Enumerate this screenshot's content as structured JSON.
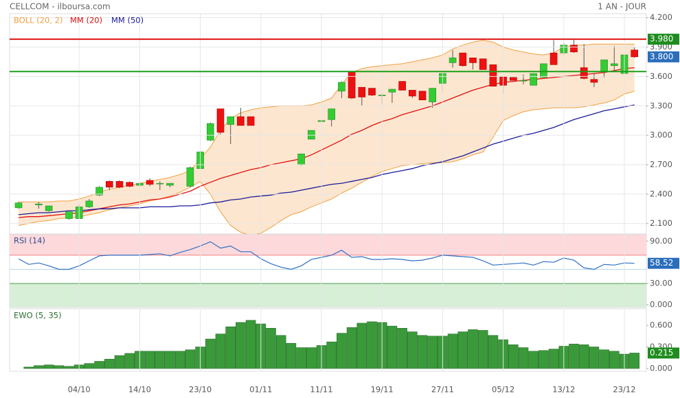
{
  "chart_data": [
    {
      "type": "candlestick",
      "title": "CELLCOM - ilboursa.com",
      "subtitle": "1 AN - JOUR",
      "categories": [
        null,
        null,
        null,
        null,
        null,
        null,
        "04/10",
        null,
        null,
        null,
        null,
        null,
        "14/10",
        null,
        null,
        null,
        null,
        null,
        "23/10",
        null,
        null,
        null,
        null,
        null,
        "01/11",
        null,
        null,
        null,
        null,
        null,
        "11/11",
        null,
        null,
        null,
        null,
        null,
        "19/11",
        null,
        null,
        null,
        null,
        null,
        "27/11",
        null,
        null,
        null,
        null,
        null,
        "05/12",
        null,
        null,
        null,
        null,
        null,
        "13/12",
        null,
        null,
        null,
        null,
        null,
        "23/12",
        null
      ],
      "open": [
        2.26,
        null,
        2.29,
        2.23,
        null,
        2.15,
        2.15,
        2.27,
        2.39,
        2.53,
        2.53,
        2.52,
        2.49,
        2.54,
        2.51,
        2.49,
        null,
        2.48,
        2.66,
        2.95,
        3.27,
        3.11,
        3.19,
        3.19,
        null,
        null,
        null,
        null,
        2.7,
        2.96,
        3.14,
        3.16,
        3.45,
        3.65,
        3.49,
        3.48,
        3.41,
        3.44,
        3.55,
        3.46,
        3.45,
        3.34,
        3.53,
        3.74,
        3.84,
        3.79,
        3.78,
        3.72,
        3.6,
        3.59,
        3.56,
        3.51,
        3.59,
        3.84,
        3.84,
        3.92,
        3.69,
        3.57,
        3.65,
        3.71,
        3.63,
        3.87
      ],
      "high": [
        2.32,
        null,
        2.32,
        2.28,
        null,
        2.22,
        2.3,
        2.35,
        2.48,
        2.54,
        2.54,
        2.53,
        2.52,
        2.56,
        2.53,
        2.51,
        null,
        2.68,
        2.84,
        3.13,
        3.27,
        3.19,
        3.28,
        3.19,
        null,
        null,
        null,
        null,
        2.81,
        3.05,
        3.16,
        3.27,
        3.55,
        3.65,
        3.49,
        3.48,
        3.43,
        3.47,
        3.55,
        3.46,
        3.45,
        3.48,
        3.64,
        3.87,
        3.84,
        3.79,
        3.78,
        3.72,
        3.6,
        3.59,
        3.62,
        3.63,
        3.73,
        3.97,
        3.95,
        3.98,
        3.93,
        3.63,
        3.77,
        3.91,
        3.89,
        3.9
      ],
      "low": [
        2.25,
        null,
        2.25,
        2.22,
        null,
        2.14,
        2.15,
        2.26,
        2.38,
        2.44,
        2.46,
        2.47,
        2.47,
        2.48,
        2.44,
        2.47,
        null,
        2.47,
        2.65,
        2.94,
        3.01,
        2.91,
        3.1,
        3.1,
        null,
        null,
        null,
        null,
        2.69,
        2.96,
        3.13,
        3.09,
        3.38,
        3.37,
        3.3,
        3.4,
        3.32,
        3.33,
        3.46,
        3.38,
        3.36,
        3.28,
        3.43,
        3.69,
        3.7,
        3.67,
        3.67,
        3.5,
        3.42,
        3.56,
        3.52,
        3.51,
        3.59,
        3.72,
        3.82,
        3.84,
        3.57,
        3.49,
        3.59,
        3.66,
        3.62,
        3.79
      ],
      "close": [
        2.31,
        null,
        2.3,
        2.28,
        null,
        2.22,
        2.27,
        2.33,
        2.47,
        2.47,
        2.47,
        2.48,
        2.51,
        2.5,
        2.51,
        2.51,
        null,
        2.67,
        2.83,
        3.12,
        3.03,
        3.19,
        3.1,
        3.1,
        null,
        null,
        null,
        null,
        2.81,
        3.05,
        3.15,
        3.27,
        3.54,
        3.38,
        3.39,
        3.41,
        3.41,
        3.47,
        3.46,
        3.4,
        3.36,
        3.48,
        3.63,
        3.79,
        3.71,
        3.74,
        3.67,
        3.5,
        3.51,
        3.56,
        3.56,
        3.63,
        3.73,
        3.72,
        3.92,
        3.85,
        3.58,
        3.54,
        3.77,
        3.73,
        3.82,
        3.8
      ],
      "up_color": "#33cc33",
      "down_color": "#ee1111",
      "last_label": "3.800",
      "last_color": "#2a6ebb",
      "bands": {
        "name": "BOLL (20, 2)",
        "color": "#f0a040",
        "fill": "#fde6cf",
        "upper": [
          2.32,
          2.32,
          2.32,
          2.32,
          2.33,
          2.33,
          2.35,
          2.38,
          2.42,
          2.45,
          2.47,
          2.49,
          2.51,
          2.53,
          2.55,
          2.57,
          2.6,
          2.64,
          2.76,
          2.88,
          3.05,
          3.17,
          3.23,
          3.26,
          3.28,
          3.29,
          3.3,
          3.3,
          3.3,
          3.31,
          3.34,
          3.38,
          3.52,
          3.64,
          3.68,
          3.7,
          3.71,
          3.72,
          3.73,
          3.75,
          3.77,
          3.79,
          3.82,
          3.88,
          3.92,
          3.95,
          3.97,
          3.95,
          3.9,
          3.87,
          3.85,
          3.83,
          3.82,
          3.84,
          3.9,
          3.92,
          3.92,
          3.93,
          3.93,
          3.93,
          3.93,
          3.93
        ],
        "lower": [
          2.08,
          2.1,
          2.12,
          2.13,
          2.15,
          2.16,
          2.17,
          2.19,
          2.21,
          2.24,
          2.26,
          2.28,
          2.3,
          2.33,
          2.35,
          2.38,
          2.42,
          2.47,
          2.53,
          2.4,
          2.22,
          2.08,
          2.01,
          1.98,
          2.0,
          2.06,
          2.13,
          2.19,
          2.22,
          2.27,
          2.31,
          2.35,
          2.41,
          2.46,
          2.52,
          2.58,
          2.63,
          2.66,
          2.69,
          2.7,
          2.71,
          2.72,
          2.72,
          2.73,
          2.76,
          2.8,
          2.83,
          2.98,
          3.15,
          3.2,
          3.24,
          3.26,
          3.27,
          3.28,
          3.28,
          3.28,
          3.29,
          3.31,
          3.33,
          3.36,
          3.42,
          3.45
        ]
      },
      "series": [
        {
          "name": "MM (20)",
          "color": "#e01010",
          "values": [
            2.16,
            2.17,
            2.17,
            2.18,
            2.19,
            2.2,
            2.21,
            2.23,
            2.25,
            2.27,
            2.29,
            2.3,
            2.32,
            2.34,
            2.35,
            2.37,
            2.4,
            2.43,
            2.48,
            2.52,
            2.56,
            2.59,
            2.62,
            2.65,
            2.67,
            2.7,
            2.72,
            2.74,
            2.76,
            2.8,
            2.85,
            2.9,
            2.95,
            3.01,
            3.05,
            3.1,
            3.14,
            3.17,
            3.21,
            3.24,
            3.27,
            3.3,
            3.34,
            3.38,
            3.42,
            3.46,
            3.49,
            3.52,
            3.54,
            3.55,
            3.56,
            3.57,
            3.58,
            3.59,
            3.6,
            3.61,
            3.62,
            3.63,
            3.64,
            3.66,
            3.68,
            3.69
          ]
        },
        {
          "name": "MM (50)",
          "color": "#1a1a99",
          "values": [
            2.19,
            2.2,
            2.21,
            2.21,
            2.22,
            2.23,
            2.23,
            2.24,
            2.25,
            2.25,
            2.26,
            2.26,
            2.26,
            2.27,
            2.27,
            2.27,
            2.28,
            2.28,
            2.29,
            2.31,
            2.32,
            2.34,
            2.35,
            2.37,
            2.38,
            2.39,
            2.41,
            2.42,
            2.44,
            2.46,
            2.48,
            2.5,
            2.51,
            2.53,
            2.55,
            2.57,
            2.6,
            2.62,
            2.64,
            2.66,
            2.69,
            2.71,
            2.73,
            2.76,
            2.79,
            2.83,
            2.87,
            2.91,
            2.94,
            2.97,
            3.0,
            3.02,
            3.05,
            3.08,
            3.12,
            3.16,
            3.19,
            3.22,
            3.25,
            3.27,
            3.29,
            3.31
          ]
        }
      ],
      "levels": [
        {
          "value": 3.98,
          "label": "3.980",
          "color": "#e01010",
          "tag_color": "#1e8c1e"
        },
        {
          "value": 3.65,
          "color": "#1a9e1a"
        }
      ],
      "ylim": [
        2.0,
        4.24
      ],
      "yticks": [
        {
          "value": 2.1,
          "label": "2.100"
        },
        {
          "value": 2.4,
          "label": "2.400"
        },
        {
          "value": 2.7,
          "label": "2.700"
        },
        {
          "value": 3.0,
          "label": "3.000"
        },
        {
          "value": 3.3,
          "label": "3.300"
        },
        {
          "value": 3.6,
          "label": "3.600"
        },
        {
          "value": 3.9,
          "label": "3.900"
        },
        {
          "value": 4.2,
          "label": "4.200"
        }
      ],
      "grid": true
    },
    {
      "type": "line",
      "title": "RSI (14)",
      "series": [
        {
          "name": "RSI (14)",
          "color": "#2f6fc4",
          "values": [
            65,
            57,
            59,
            55,
            50,
            50,
            55,
            62,
            69,
            70,
            70,
            70,
            70,
            71,
            72,
            69,
            74,
            78,
            83,
            89,
            80,
            83,
            75,
            75,
            65,
            58,
            53,
            50,
            55,
            64,
            67,
            70,
            77,
            67,
            68,
            64,
            64,
            65,
            64,
            62,
            63,
            66,
            70,
            69,
            68,
            67,
            62,
            56,
            57,
            58,
            59,
            56,
            61,
            60,
            66,
            63,
            52,
            50,
            57,
            56,
            59,
            58.52
          ]
        }
      ],
      "zones": [
        {
          "from": 70,
          "to": 100,
          "color": "#fdd9dc",
          "line": "#f08080"
        },
        {
          "from": 0,
          "to": 30,
          "color": "#d7eed7",
          "line": "#4aa04a"
        }
      ],
      "midline": 50,
      "tag_color": "#2a6ebb",
      "ylim": [
        0,
        100
      ],
      "yticks": [
        {
          "value": 0,
          "label": "0.000"
        },
        {
          "value": 30,
          "label": "30.00"
        },
        {
          "value": 90,
          "label": "90.00"
        }
      ]
    },
    {
      "type": "bar",
      "title": "EWO (5, 35)",
      "color": "#3a9a3a",
      "tag_color": "#1e8c1e",
      "values": [
        null,
        0.02,
        0.04,
        0.05,
        0.04,
        0.03,
        0.05,
        0.07,
        0.1,
        0.13,
        0.18,
        0.21,
        0.24,
        0.24,
        0.24,
        0.24,
        0.24,
        0.26,
        0.3,
        0.41,
        0.48,
        0.58,
        0.64,
        0.67,
        0.62,
        0.56,
        0.46,
        0.35,
        0.29,
        0.29,
        0.32,
        0.37,
        0.49,
        0.57,
        0.63,
        0.65,
        0.64,
        0.59,
        0.56,
        0.51,
        0.46,
        0.45,
        0.45,
        0.48,
        0.51,
        0.54,
        0.53,
        0.46,
        0.4,
        0.33,
        0.29,
        0.24,
        0.25,
        0.27,
        0.31,
        0.34,
        0.33,
        0.3,
        0.26,
        0.24,
        0.2,
        0.215
      ],
      "ylim": [
        0,
        0.83
      ],
      "yticks": [
        {
          "value": 0,
          "label": "0.000"
        },
        {
          "value": 0.3,
          "label": "0.300"
        },
        {
          "value": 0.6,
          "label": "0.600"
        }
      ]
    }
  ]
}
